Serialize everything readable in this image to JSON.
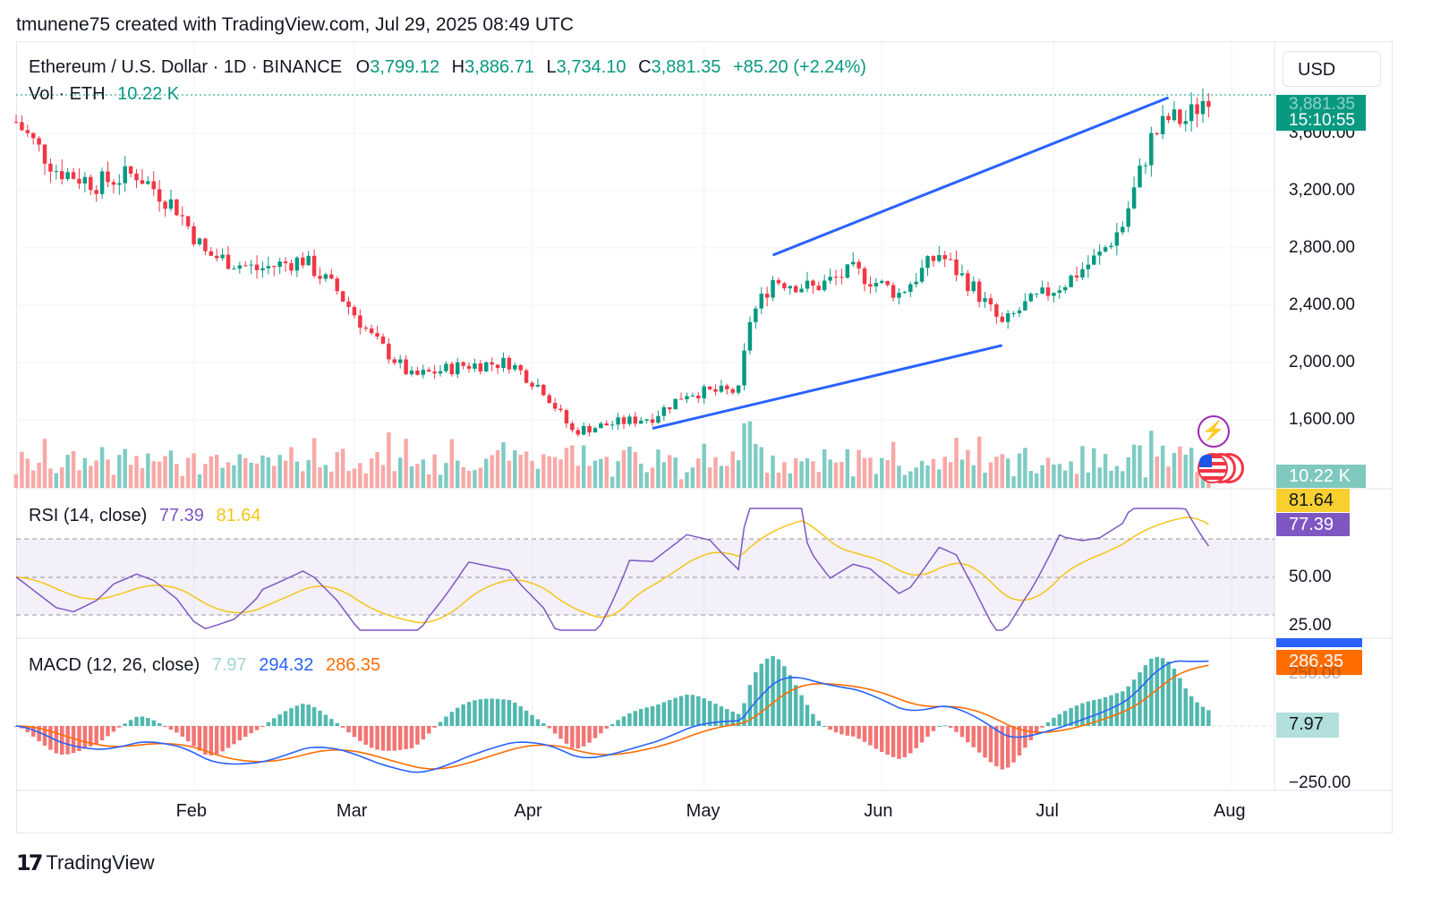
{
  "caption": "tmunene75 created with TradingView.com, Jul 29, 2025 08:49 UTC",
  "header": {
    "symbol": "Ethereum / U.S. Dollar · 1D · BINANCE",
    "open_label": "O",
    "open": "3,799.12",
    "high_label": "H",
    "high": "3,886.71",
    "low_label": "L",
    "low": "3,734.10",
    "close_label": "C",
    "close": "3,881.35",
    "change": "+85.20 (+2.24%)"
  },
  "volume": {
    "label": "Vol · ETH",
    "value": "10.22 K"
  },
  "currency_button": "USD",
  "colors": {
    "up": "#089981",
    "down": "#f23645",
    "trendline": "#2962ff",
    "rsi": "#7e57c2",
    "rsi_ma": "#f5c518",
    "macd": "#2962ff",
    "signal": "#ff6d00"
  },
  "price_axis": [
    "3,600.00",
    "3,200.00",
    "2,800.00",
    "2,400.00",
    "2,000.00",
    "1,600.00"
  ],
  "price_tag": {
    "price": "3,881.35",
    "countdown": "15:10:55"
  },
  "volume_tag": "10.22 K",
  "rsi": {
    "label": "RSI (14, close)",
    "value": "77.39",
    "ma": "81.64",
    "axis": [
      "50.00",
      "25.00"
    ]
  },
  "macd": {
    "label": "MACD (12, 26, close)",
    "hist": "7.97",
    "macd": "294.32",
    "signal": "286.35",
    "axis": [
      "250.00",
      "−250.00"
    ]
  },
  "time_axis": [
    "Feb",
    "Mar",
    "Apr",
    "May",
    "Jun",
    "Jul",
    "Aug"
  ],
  "footer": {
    "brand": "TradingView",
    "logo": "17"
  },
  "chart_data": {
    "type": "line",
    "title": "Ethereum / U.S. Dollar · 1D · BINANCE",
    "ylim": [
      1450,
      3950
    ],
    "x": [
      "2025-01-01",
      "2025-01-08",
      "2025-01-15",
      "2025-01-22",
      "2025-01-29",
      "2025-02-03",
      "2025-02-12",
      "2025-02-20",
      "2025-02-26",
      "2025-03-04",
      "2025-03-11",
      "2025-03-20",
      "2025-03-28",
      "2025-04-03",
      "2025-04-08",
      "2025-04-16",
      "2025-04-22",
      "2025-04-28",
      "2025-05-07",
      "2025-05-09",
      "2025-05-13",
      "2025-05-20",
      "2025-05-27",
      "2025-06-04",
      "2025-06-11",
      "2025-06-17",
      "2025-06-22",
      "2025-06-26",
      "2025-07-03",
      "2025-07-09",
      "2025-07-13",
      "2025-07-18",
      "2025-07-21",
      "2025-07-24",
      "2025-07-28"
    ],
    "series": [
      {
        "values": [
          3680,
          3350,
          3250,
          3320,
          3080,
          2760,
          2650,
          2720,
          2500,
          2180,
          1900,
          1980,
          2000,
          1810,
          1520,
          1580,
          1620,
          1790,
          1800,
          2300,
          2580,
          2520,
          2640,
          2480,
          2760,
          2520,
          2260,
          2400,
          2560,
          2750,
          2960,
          3560,
          3700,
          3690,
          3881
        ]
      }
    ],
    "trendlines": [
      {
        "from": [
          "2025-04-22",
          1540
        ],
        "to": [
          "2025-06-22",
          2120
        ]
      },
      {
        "from": [
          "2025-05-13",
          2750
        ],
        "to": [
          "2025-07-21",
          3850
        ]
      }
    ],
    "volume": {
      "last": "10.22 K"
    },
    "rsi": {
      "last": 77.39,
      "ma": 81.64,
      "levels": [
        70,
        50,
        30
      ]
    },
    "macd": {
      "macd": 294.32,
      "signal": 286.35,
      "histogram": 7.97
    }
  }
}
